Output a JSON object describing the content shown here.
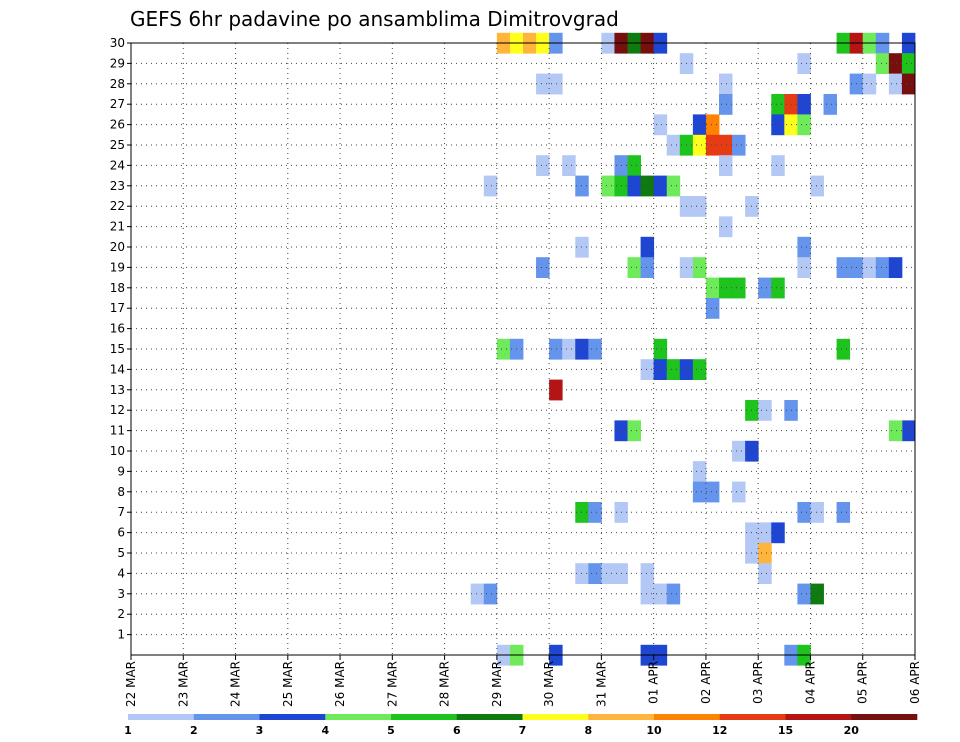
{
  "chart_data": {
    "type": "heatmap",
    "title": "GEFS 6hr padavine po ansamblima Dimitrovgrad",
    "xlabel": "",
    "ylabel": "",
    "x_tick_labels": [
      "22 MAR",
      "23 MAR",
      "24 MAR",
      "25 MAR",
      "26 MAR",
      "27 MAR",
      "28 MAR",
      "29 MAR",
      "30 MAR",
      "31 MAR",
      "01 APR",
      "02 APR",
      "03 APR",
      "04 APR",
      "05 APR",
      "06 APR"
    ],
    "xlim_steps": [
      0,
      60
    ],
    "ylim": [
      0,
      30
    ],
    "y_tick_labels": [
      "1",
      "2",
      "3",
      "4",
      "5",
      "6",
      "7",
      "8",
      "9",
      "10",
      "11",
      "12",
      "13",
      "14",
      "15",
      "16",
      "17",
      "18",
      "19",
      "20",
      "21",
      "22",
      "23",
      "24",
      "25",
      "26",
      "27",
      "28",
      "29",
      "30"
    ],
    "grid": true,
    "legend": {
      "placement": "bottom",
      "labels": [
        "1",
        "2",
        "3",
        "4",
        "5",
        "6",
        "7",
        "8",
        "10",
        "12",
        "15",
        "20"
      ],
      "colors": [
        "#b4c8f5",
        "#6494ec",
        "#1e46d2",
        "#6eea5a",
        "#1ec31e",
        "#0f7a0f",
        "#ffff1e",
        "#ffb43c",
        "#ff8200",
        "#e63c14",
        "#b41414",
        "#780f0f"
      ]
    },
    "cells": [
      [
        28,
        30,
        8
      ],
      [
        29,
        30,
        7
      ],
      [
        30,
        30,
        8
      ],
      [
        31,
        30,
        7
      ],
      [
        32,
        30,
        2
      ],
      [
        36,
        30,
        1
      ],
      [
        37,
        30,
        12
      ],
      [
        38,
        30,
        6
      ],
      [
        39,
        30,
        12
      ],
      [
        40,
        30,
        3
      ],
      [
        54,
        30,
        5
      ],
      [
        55,
        30,
        11
      ],
      [
        56,
        30,
        4
      ],
      [
        57,
        30,
        2
      ],
      [
        59,
        30,
        3
      ],
      [
        42,
        29,
        1
      ],
      [
        51,
        29,
        1
      ],
      [
        57,
        29,
        4
      ],
      [
        58,
        29,
        12
      ],
      [
        59,
        29,
        5
      ],
      [
        31,
        28,
        1
      ],
      [
        32,
        28,
        1
      ],
      [
        45,
        28,
        1
      ],
      [
        55,
        28,
        2
      ],
      [
        56,
        28,
        1
      ],
      [
        58,
        28,
        1
      ],
      [
        59,
        28,
        12
      ],
      [
        45,
        27,
        2
      ],
      [
        49,
        27,
        5
      ],
      [
        50,
        27,
        10
      ],
      [
        51,
        27,
        3
      ],
      [
        53,
        27,
        2
      ],
      [
        40,
        26,
        1
      ],
      [
        43,
        26,
        3
      ],
      [
        44,
        26,
        9
      ],
      [
        49,
        26,
        3
      ],
      [
        50,
        26,
        7
      ],
      [
        51,
        26,
        4
      ],
      [
        41,
        25,
        1
      ],
      [
        42,
        25,
        5
      ],
      [
        43,
        25,
        7
      ],
      [
        44,
        25,
        10
      ],
      [
        45,
        25,
        10
      ],
      [
        46,
        25,
        2
      ],
      [
        31,
        24,
        1
      ],
      [
        33,
        24,
        1
      ],
      [
        37,
        24,
        2
      ],
      [
        38,
        24,
        5
      ],
      [
        45,
        24,
        1
      ],
      [
        49,
        24,
        1
      ],
      [
        27,
        23,
        1
      ],
      [
        34,
        23,
        2
      ],
      [
        36,
        23,
        4
      ],
      [
        37,
        23,
        5
      ],
      [
        38,
        23,
        3
      ],
      [
        39,
        23,
        6
      ],
      [
        40,
        23,
        3
      ],
      [
        41,
        23,
        4
      ],
      [
        52,
        23,
        1
      ],
      [
        42,
        22,
        1
      ],
      [
        43,
        22,
        1
      ],
      [
        47,
        22,
        1
      ],
      [
        45,
        21,
        1
      ],
      [
        34,
        20,
        1
      ],
      [
        39,
        20,
        3
      ],
      [
        51,
        20,
        2
      ],
      [
        31,
        19,
        2
      ],
      [
        38,
        19,
        4
      ],
      [
        39,
        19,
        2
      ],
      [
        42,
        19,
        1
      ],
      [
        43,
        19,
        4
      ],
      [
        51,
        19,
        1
      ],
      [
        54,
        19,
        2
      ],
      [
        55,
        19,
        2
      ],
      [
        56,
        19,
        1
      ],
      [
        57,
        19,
        2
      ],
      [
        58,
        19,
        3
      ],
      [
        44,
        18,
        4
      ],
      [
        45,
        18,
        5
      ],
      [
        46,
        18,
        5
      ],
      [
        48,
        18,
        2
      ],
      [
        49,
        18,
        5
      ],
      [
        44,
        17,
        2
      ],
      [
        28,
        15,
        4
      ],
      [
        29,
        15,
        2
      ],
      [
        32,
        15,
        2
      ],
      [
        33,
        15,
        1
      ],
      [
        34,
        15,
        3
      ],
      [
        35,
        15,
        2
      ],
      [
        40,
        15,
        5
      ],
      [
        54,
        15,
        5
      ],
      [
        39,
        14,
        1
      ],
      [
        40,
        14,
        3
      ],
      [
        41,
        14,
        5
      ],
      [
        42,
        14,
        3
      ],
      [
        43,
        14,
        5
      ],
      [
        32,
        13,
        11
      ],
      [
        47,
        12,
        5
      ],
      [
        48,
        12,
        1
      ],
      [
        50,
        12,
        2
      ],
      [
        37,
        11,
        3
      ],
      [
        38,
        11,
        4
      ],
      [
        59,
        11,
        3
      ],
      [
        58,
        11,
        4
      ],
      [
        46,
        10,
        1
      ],
      [
        47,
        10,
        3
      ],
      [
        43,
        9,
        1
      ],
      [
        43,
        8,
        2
      ],
      [
        44,
        8,
        2
      ],
      [
        46,
        8,
        1
      ],
      [
        34,
        7,
        5
      ],
      [
        35,
        7,
        2
      ],
      [
        37,
        7,
        1
      ],
      [
        51,
        7,
        2
      ],
      [
        52,
        7,
        1
      ],
      [
        54,
        7,
        2
      ],
      [
        47,
        6,
        1
      ],
      [
        48,
        6,
        1
      ],
      [
        49,
        6,
        3
      ],
      [
        47,
        5,
        1
      ],
      [
        48,
        5,
        8
      ],
      [
        34,
        4,
        1
      ],
      [
        35,
        4,
        2
      ],
      [
        36,
        4,
        1
      ],
      [
        37,
        4,
        1
      ],
      [
        39,
        4,
        1
      ],
      [
        48,
        4,
        1
      ],
      [
        26,
        3,
        1
      ],
      [
        27,
        3,
        2
      ],
      [
        39,
        3,
        1
      ],
      [
        40,
        3,
        1
      ],
      [
        41,
        3,
        2
      ],
      [
        51,
        3,
        2
      ],
      [
        52,
        3,
        6
      ],
      [
        28,
        0,
        1
      ],
      [
        29,
        0,
        4
      ],
      [
        32,
        0,
        3
      ],
      [
        39,
        0,
        3
      ],
      [
        40,
        0,
        3
      ],
      [
        50,
        0,
        2
      ],
      [
        51,
        0,
        5
      ]
    ]
  }
}
